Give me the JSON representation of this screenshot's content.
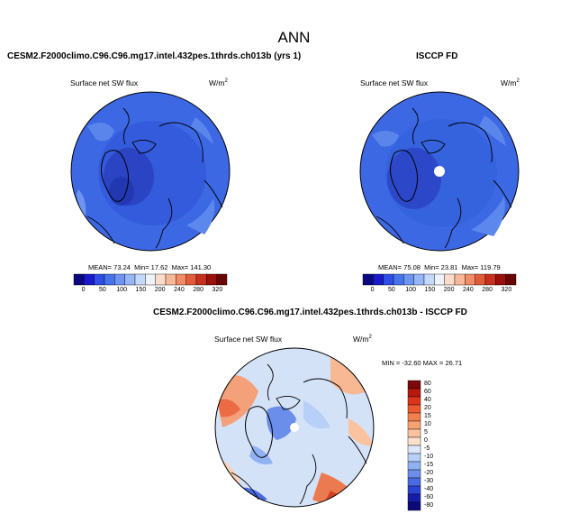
{
  "title": "ANN",
  "left_panel": {
    "case_title": "CESM2.F2000climo.C96.C96.mg17.intel.432pes.1thrds.ch013b (yrs 1)",
    "variable": "Surface net SW flux",
    "units": "W/m",
    "units_sup": "2",
    "mean_label": "MEAN=",
    "mean": "73.24",
    "min_label": "Min=",
    "min": "17.62",
    "max_label": "Max=",
    "max": "141.30"
  },
  "right_panel": {
    "case_title": "ISCCP FD",
    "variable": "Surface net SW flux",
    "units": "W/m",
    "units_sup": "2",
    "mean_label": "MEAN=",
    "mean": "75.08",
    "min_label": "Min=",
    "min": "23.81",
    "max_label": "Max=",
    "max": "119.79"
  },
  "diff_panel": {
    "case_title": "CESM2.F2000climo.C96.C96.mg17.intel.432pes.1thrds.ch013b - ISCCP FD",
    "variable": "Surface net SW flux",
    "units": "W/m",
    "units_sup": "2",
    "minmax_text": "MIN = -32.60 MAX =  26.71"
  },
  "abs_colorbar": {
    "ticks": [
      "0",
      "50",
      "100",
      "150",
      "200",
      "240",
      "280",
      "320"
    ],
    "colors": [
      "#0a0a80",
      "#1a1acc",
      "#2e4ee6",
      "#4672ea",
      "#6c94f0",
      "#96b6f6",
      "#c4d8fb",
      "#eef2fb",
      "#fbdcc8",
      "#f7b898",
      "#f28a66",
      "#e25a3a",
      "#c8301c",
      "#9c100a",
      "#6a0404"
    ]
  },
  "diff_colorbar": {
    "ticks": [
      "80",
      "60",
      "40",
      "20",
      "15",
      "10",
      "5",
      "0",
      "-5",
      "-10",
      "-15",
      "-20",
      "-30",
      "-40",
      "-60",
      "-80"
    ],
    "colors": [
      "#7a0a0a",
      "#b8180e",
      "#dc3418",
      "#ec5a30",
      "#f4804e",
      "#f8a272",
      "#fbc2a0",
      "#fde0cc",
      "#dbe8fb",
      "#b8d0f8",
      "#90b2f2",
      "#6a8eea",
      "#4a6ae2",
      "#2a44d0",
      "#161ca8",
      "#0c0a78"
    ]
  },
  "colors": {
    "polar_fill": "#3a64e2",
    "diff_background": "#d4e2f8"
  }
}
